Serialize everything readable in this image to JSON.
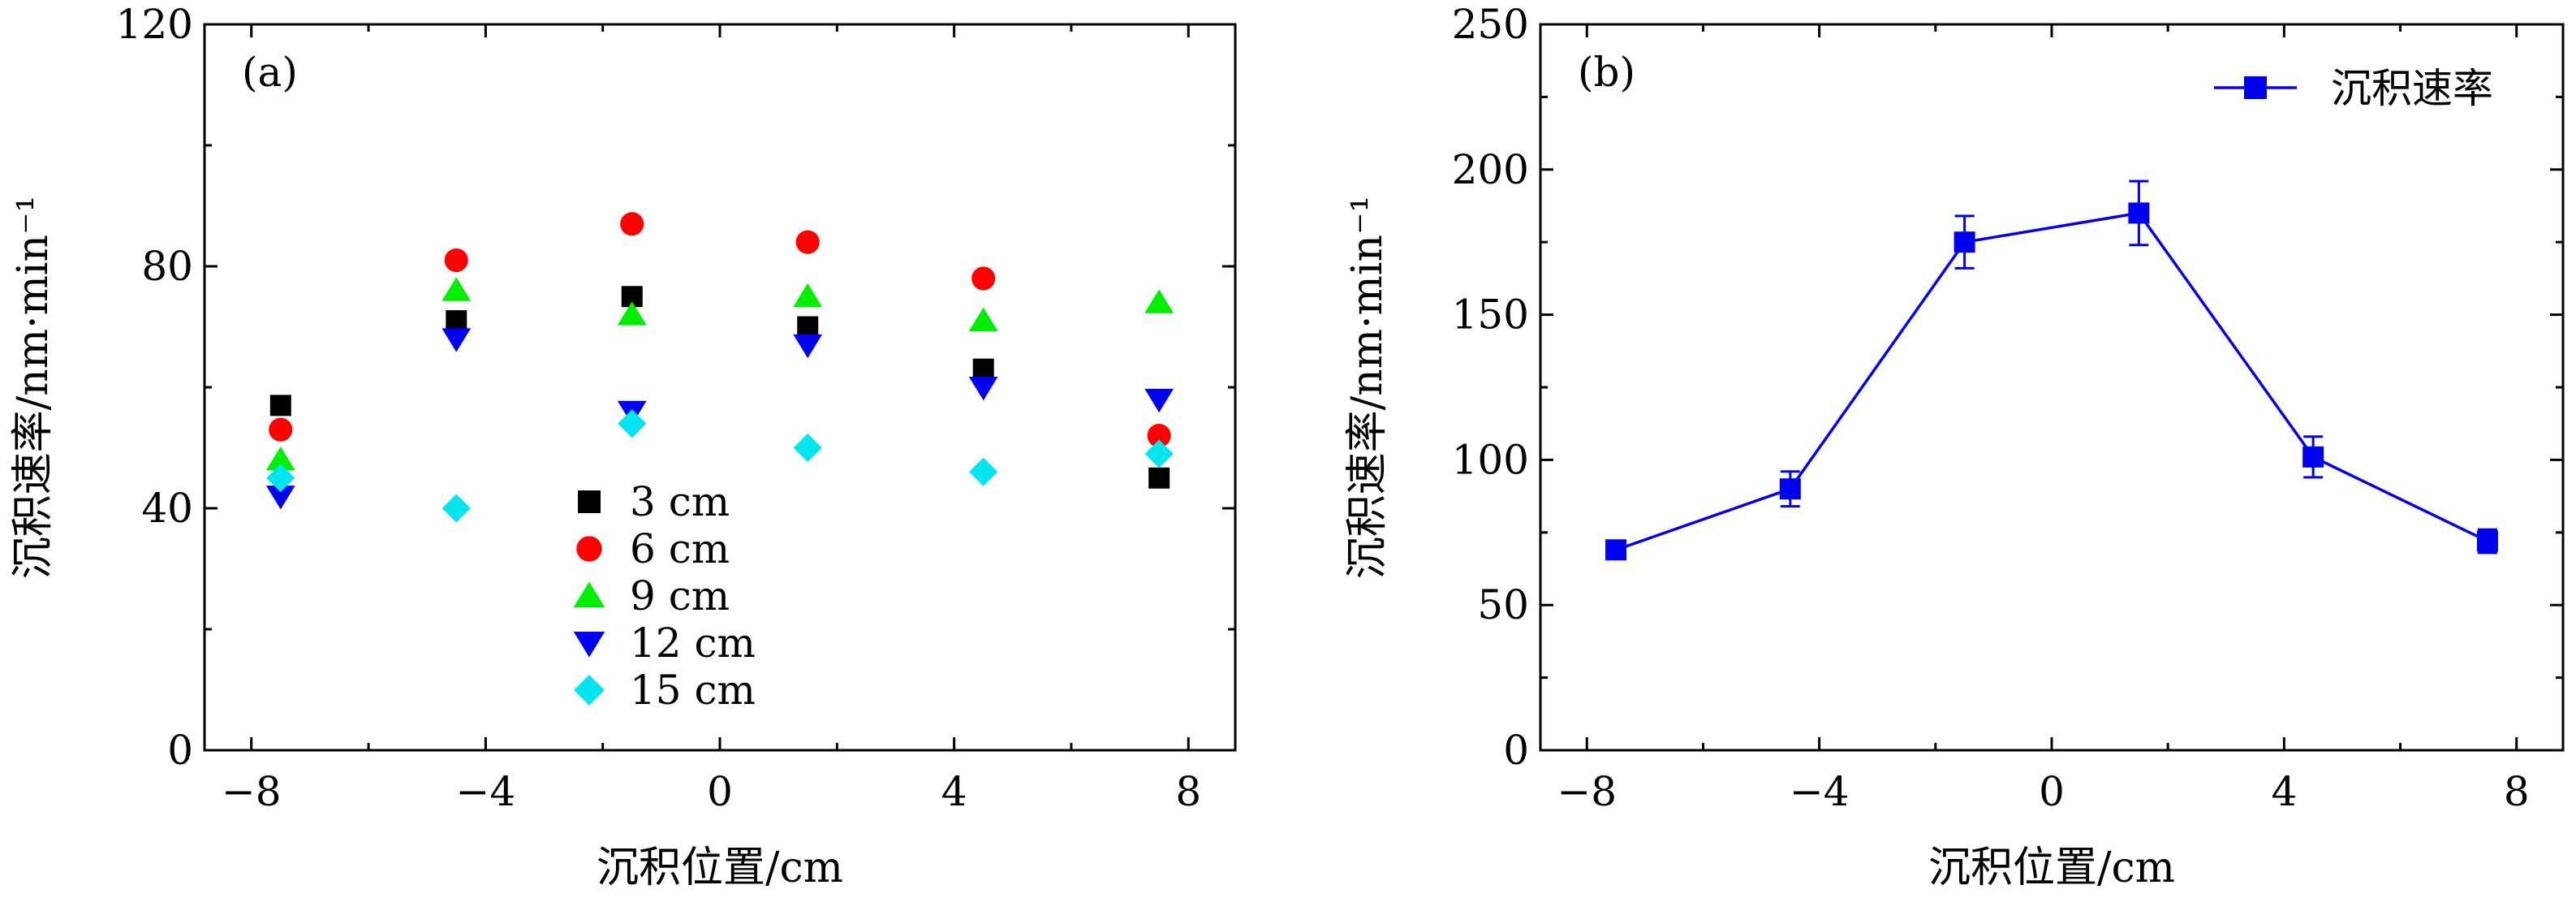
{
  "chart_data": [
    {
      "type": "scatter",
      "panel_label": "(a)",
      "xlabel": "沉积位置/cm",
      "ylabel": "沉积速率/nm·min⁻¹",
      "xlim": [
        -8.8,
        8.8
      ],
      "ylim": [
        0,
        120
      ],
      "x_major_ticks": [
        -8,
        -4,
        0,
        4,
        8
      ],
      "x_tick_labels": [
        "−8",
        "−4",
        "0",
        "4",
        "8"
      ],
      "y_major_ticks": [
        0,
        40,
        80,
        120
      ],
      "y_tick_labels": [
        "0",
        "40",
        "80",
        "120"
      ],
      "grid": false,
      "legend_position": "center-bottom",
      "series": [
        {
          "name": "3 cm",
          "marker": "square",
          "color": "#000000",
          "points": [
            [
              -7.5,
              57
            ],
            [
              -4.5,
              71
            ],
            [
              -1.5,
              75
            ],
            [
              1.5,
              70
            ],
            [
              4.5,
              63
            ],
            [
              7.5,
              45
            ]
          ]
        },
        {
          "name": "6 cm",
          "marker": "circle",
          "color": "#ff0000",
          "points": [
            [
              -7.5,
              53
            ],
            [
              -4.5,
              81
            ],
            [
              -1.5,
              87
            ],
            [
              1.5,
              84
            ],
            [
              4.5,
              78
            ],
            [
              7.5,
              52
            ]
          ]
        },
        {
          "name": "9 cm",
          "marker": "triangle-up",
          "color": "#00ee00",
          "points": [
            [
              -7.5,
              48
            ],
            [
              -4.5,
              76
            ],
            [
              -1.5,
              72
            ],
            [
              1.5,
              75
            ],
            [
              4.5,
              71
            ],
            [
              7.5,
              74
            ]
          ]
        },
        {
          "name": "12 cm",
          "marker": "triangle-down",
          "color": "#0000ee",
          "points": [
            [
              -7.5,
              42
            ],
            [
              -4.5,
              68
            ],
            [
              -1.5,
              56
            ],
            [
              1.5,
              67
            ],
            [
              4.5,
              60
            ],
            [
              7.5,
              58
            ]
          ]
        },
        {
          "name": "15 cm",
          "marker": "diamond",
          "color": "#00e5ee",
          "points": [
            [
              -7.5,
              45
            ],
            [
              -4.5,
              40
            ],
            [
              -1.5,
              54
            ],
            [
              1.5,
              50
            ],
            [
              4.5,
              46
            ],
            [
              7.5,
              49
            ]
          ]
        }
      ]
    },
    {
      "type": "line",
      "panel_label": "(b)",
      "xlabel": "沉积位置/cm",
      "ylabel": "沉积速率/nm·min⁻¹",
      "xlim": [
        -8.8,
        8.8
      ],
      "ylim": [
        0,
        250
      ],
      "x_major_ticks": [
        -8,
        -4,
        0,
        4,
        8
      ],
      "x_tick_labels": [
        "−8",
        "−4",
        "0",
        "4",
        "8"
      ],
      "y_major_ticks": [
        0,
        50,
        100,
        150,
        200,
        250
      ],
      "y_tick_labels": [
        "0",
        "50",
        "100",
        "150",
        "200",
        "250"
      ],
      "grid": false,
      "legend_position": "top-right",
      "series": [
        {
          "name": "沉积速率",
          "marker": "square",
          "color": "#0000ee",
          "x": [
            -7.5,
            -4.5,
            -1.5,
            1.5,
            4.5,
            7.5
          ],
          "y": [
            69,
            90,
            175,
            185,
            101,
            72
          ],
          "error": [
            3,
            6,
            9,
            11,
            7,
            4
          ]
        }
      ]
    }
  ]
}
